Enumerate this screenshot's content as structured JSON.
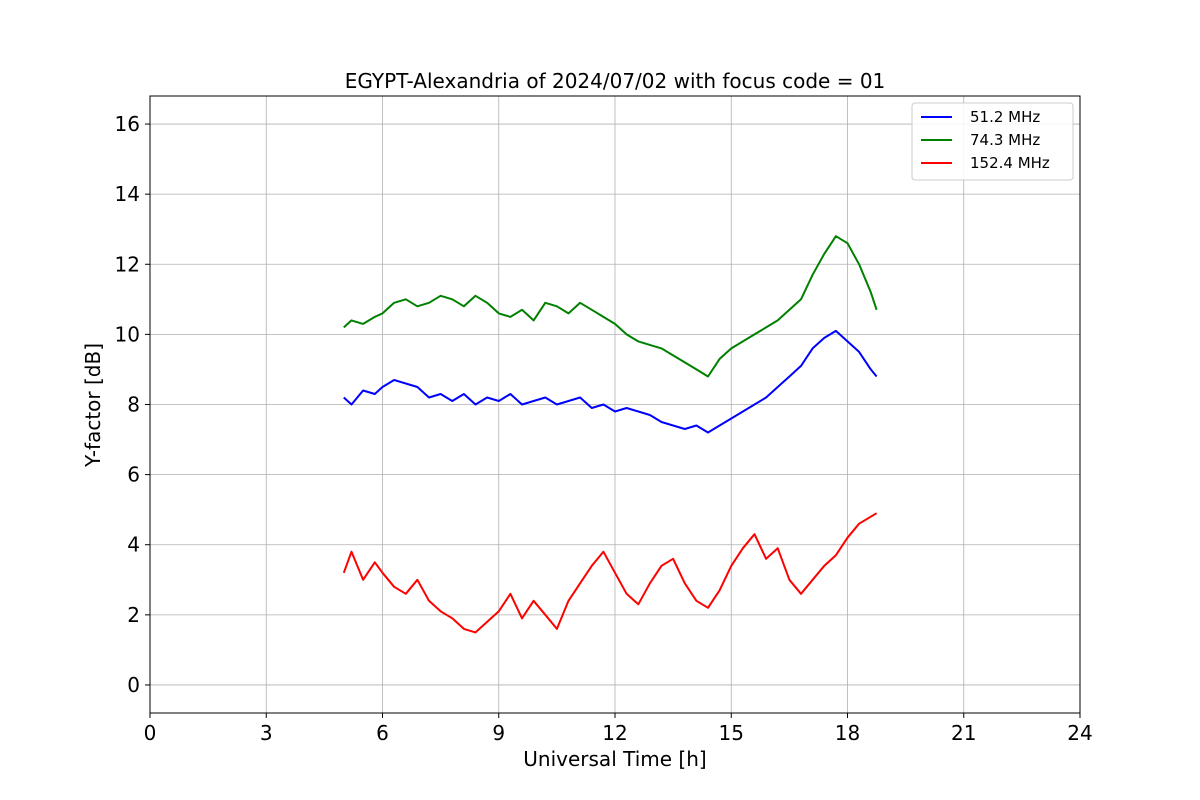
{
  "chart_data": {
    "type": "line",
    "title": "EGYPT-Alexandria of 2024/07/02 with focus code = 01",
    "xlabel": "Universal Time [h]",
    "ylabel": "Y-factor [dB]",
    "xlim": [
      0,
      24
    ],
    "ylim": [
      -0.8,
      16.8
    ],
    "xticks": [
      0,
      3,
      6,
      9,
      12,
      15,
      18,
      21,
      24
    ],
    "yticks": [
      0,
      2,
      4,
      6,
      8,
      10,
      12,
      14,
      16
    ],
    "grid": true,
    "legend_position": "top-right",
    "series": [
      {
        "name": "51.2 MHz",
        "color": "#0000ff",
        "x": [
          5.0,
          5.2,
          5.5,
          5.8,
          6.0,
          6.3,
          6.6,
          6.9,
          7.2,
          7.5,
          7.8,
          8.1,
          8.4,
          8.7,
          9.0,
          9.3,
          9.6,
          9.9,
          10.2,
          10.5,
          10.8,
          11.1,
          11.4,
          11.7,
          12.0,
          12.3,
          12.6,
          12.9,
          13.2,
          13.5,
          13.8,
          14.1,
          14.4,
          14.7,
          15.0,
          15.3,
          15.6,
          15.9,
          16.2,
          16.5,
          16.8,
          17.1,
          17.4,
          17.7,
          18.0,
          18.3,
          18.6,
          18.75
        ],
        "y": [
          8.2,
          8.0,
          8.4,
          8.3,
          8.5,
          8.7,
          8.6,
          8.5,
          8.2,
          8.3,
          8.1,
          8.3,
          8.0,
          8.2,
          8.1,
          8.3,
          8.0,
          8.1,
          8.2,
          8.0,
          8.1,
          8.2,
          7.9,
          8.0,
          7.8,
          7.9,
          7.8,
          7.7,
          7.5,
          7.4,
          7.3,
          7.4,
          7.2,
          7.4,
          7.6,
          7.8,
          8.0,
          8.2,
          8.5,
          8.8,
          9.1,
          9.6,
          9.9,
          10.1,
          9.8,
          9.5,
          9.0,
          8.8
        ]
      },
      {
        "name": "74.3 MHz",
        "color": "#008000",
        "x": [
          5.0,
          5.2,
          5.5,
          5.8,
          6.0,
          6.3,
          6.6,
          6.9,
          7.2,
          7.5,
          7.8,
          8.1,
          8.4,
          8.7,
          9.0,
          9.3,
          9.6,
          9.9,
          10.2,
          10.5,
          10.8,
          11.1,
          11.4,
          11.7,
          12.0,
          12.3,
          12.6,
          12.9,
          13.2,
          13.5,
          13.8,
          14.1,
          14.4,
          14.7,
          15.0,
          15.3,
          15.6,
          15.9,
          16.2,
          16.5,
          16.8,
          17.1,
          17.4,
          17.7,
          18.0,
          18.3,
          18.6,
          18.75
        ],
        "y": [
          10.2,
          10.4,
          10.3,
          10.5,
          10.6,
          10.9,
          11.0,
          10.8,
          10.9,
          11.1,
          11.0,
          10.8,
          11.1,
          10.9,
          10.6,
          10.5,
          10.7,
          10.4,
          10.9,
          10.8,
          10.6,
          10.9,
          10.7,
          10.5,
          10.3,
          10.0,
          9.8,
          9.7,
          9.6,
          9.4,
          9.2,
          9.0,
          8.8,
          9.3,
          9.6,
          9.8,
          10.0,
          10.2,
          10.4,
          10.7,
          11.0,
          11.7,
          12.3,
          12.8,
          12.6,
          12.0,
          11.2,
          10.7
        ]
      },
      {
        "name": "152.4 MHz",
        "color": "#ff0000",
        "x": [
          5.0,
          5.2,
          5.5,
          5.8,
          6.0,
          6.3,
          6.6,
          6.9,
          7.2,
          7.5,
          7.8,
          8.1,
          8.4,
          8.7,
          9.0,
          9.3,
          9.6,
          9.9,
          10.2,
          10.5,
          10.8,
          11.1,
          11.4,
          11.7,
          12.0,
          12.3,
          12.6,
          12.9,
          13.2,
          13.5,
          13.8,
          14.1,
          14.4,
          14.7,
          15.0,
          15.3,
          15.6,
          15.9,
          16.2,
          16.5,
          16.8,
          17.1,
          17.4,
          17.7,
          18.0,
          18.3,
          18.6,
          18.75
        ],
        "y": [
          3.2,
          3.8,
          3.0,
          3.5,
          3.2,
          2.8,
          2.6,
          3.0,
          2.4,
          2.1,
          1.9,
          1.6,
          1.5,
          1.8,
          2.1,
          2.6,
          1.9,
          2.4,
          2.0,
          1.6,
          2.4,
          2.9,
          3.4,
          3.8,
          3.2,
          2.6,
          2.3,
          2.9,
          3.4,
          3.6,
          2.9,
          2.4,
          2.2,
          2.7,
          3.4,
          3.9,
          4.3,
          3.6,
          3.9,
          3.0,
          2.6,
          3.0,
          3.4,
          3.7,
          4.2,
          4.6,
          4.8,
          4.9
        ]
      }
    ]
  }
}
